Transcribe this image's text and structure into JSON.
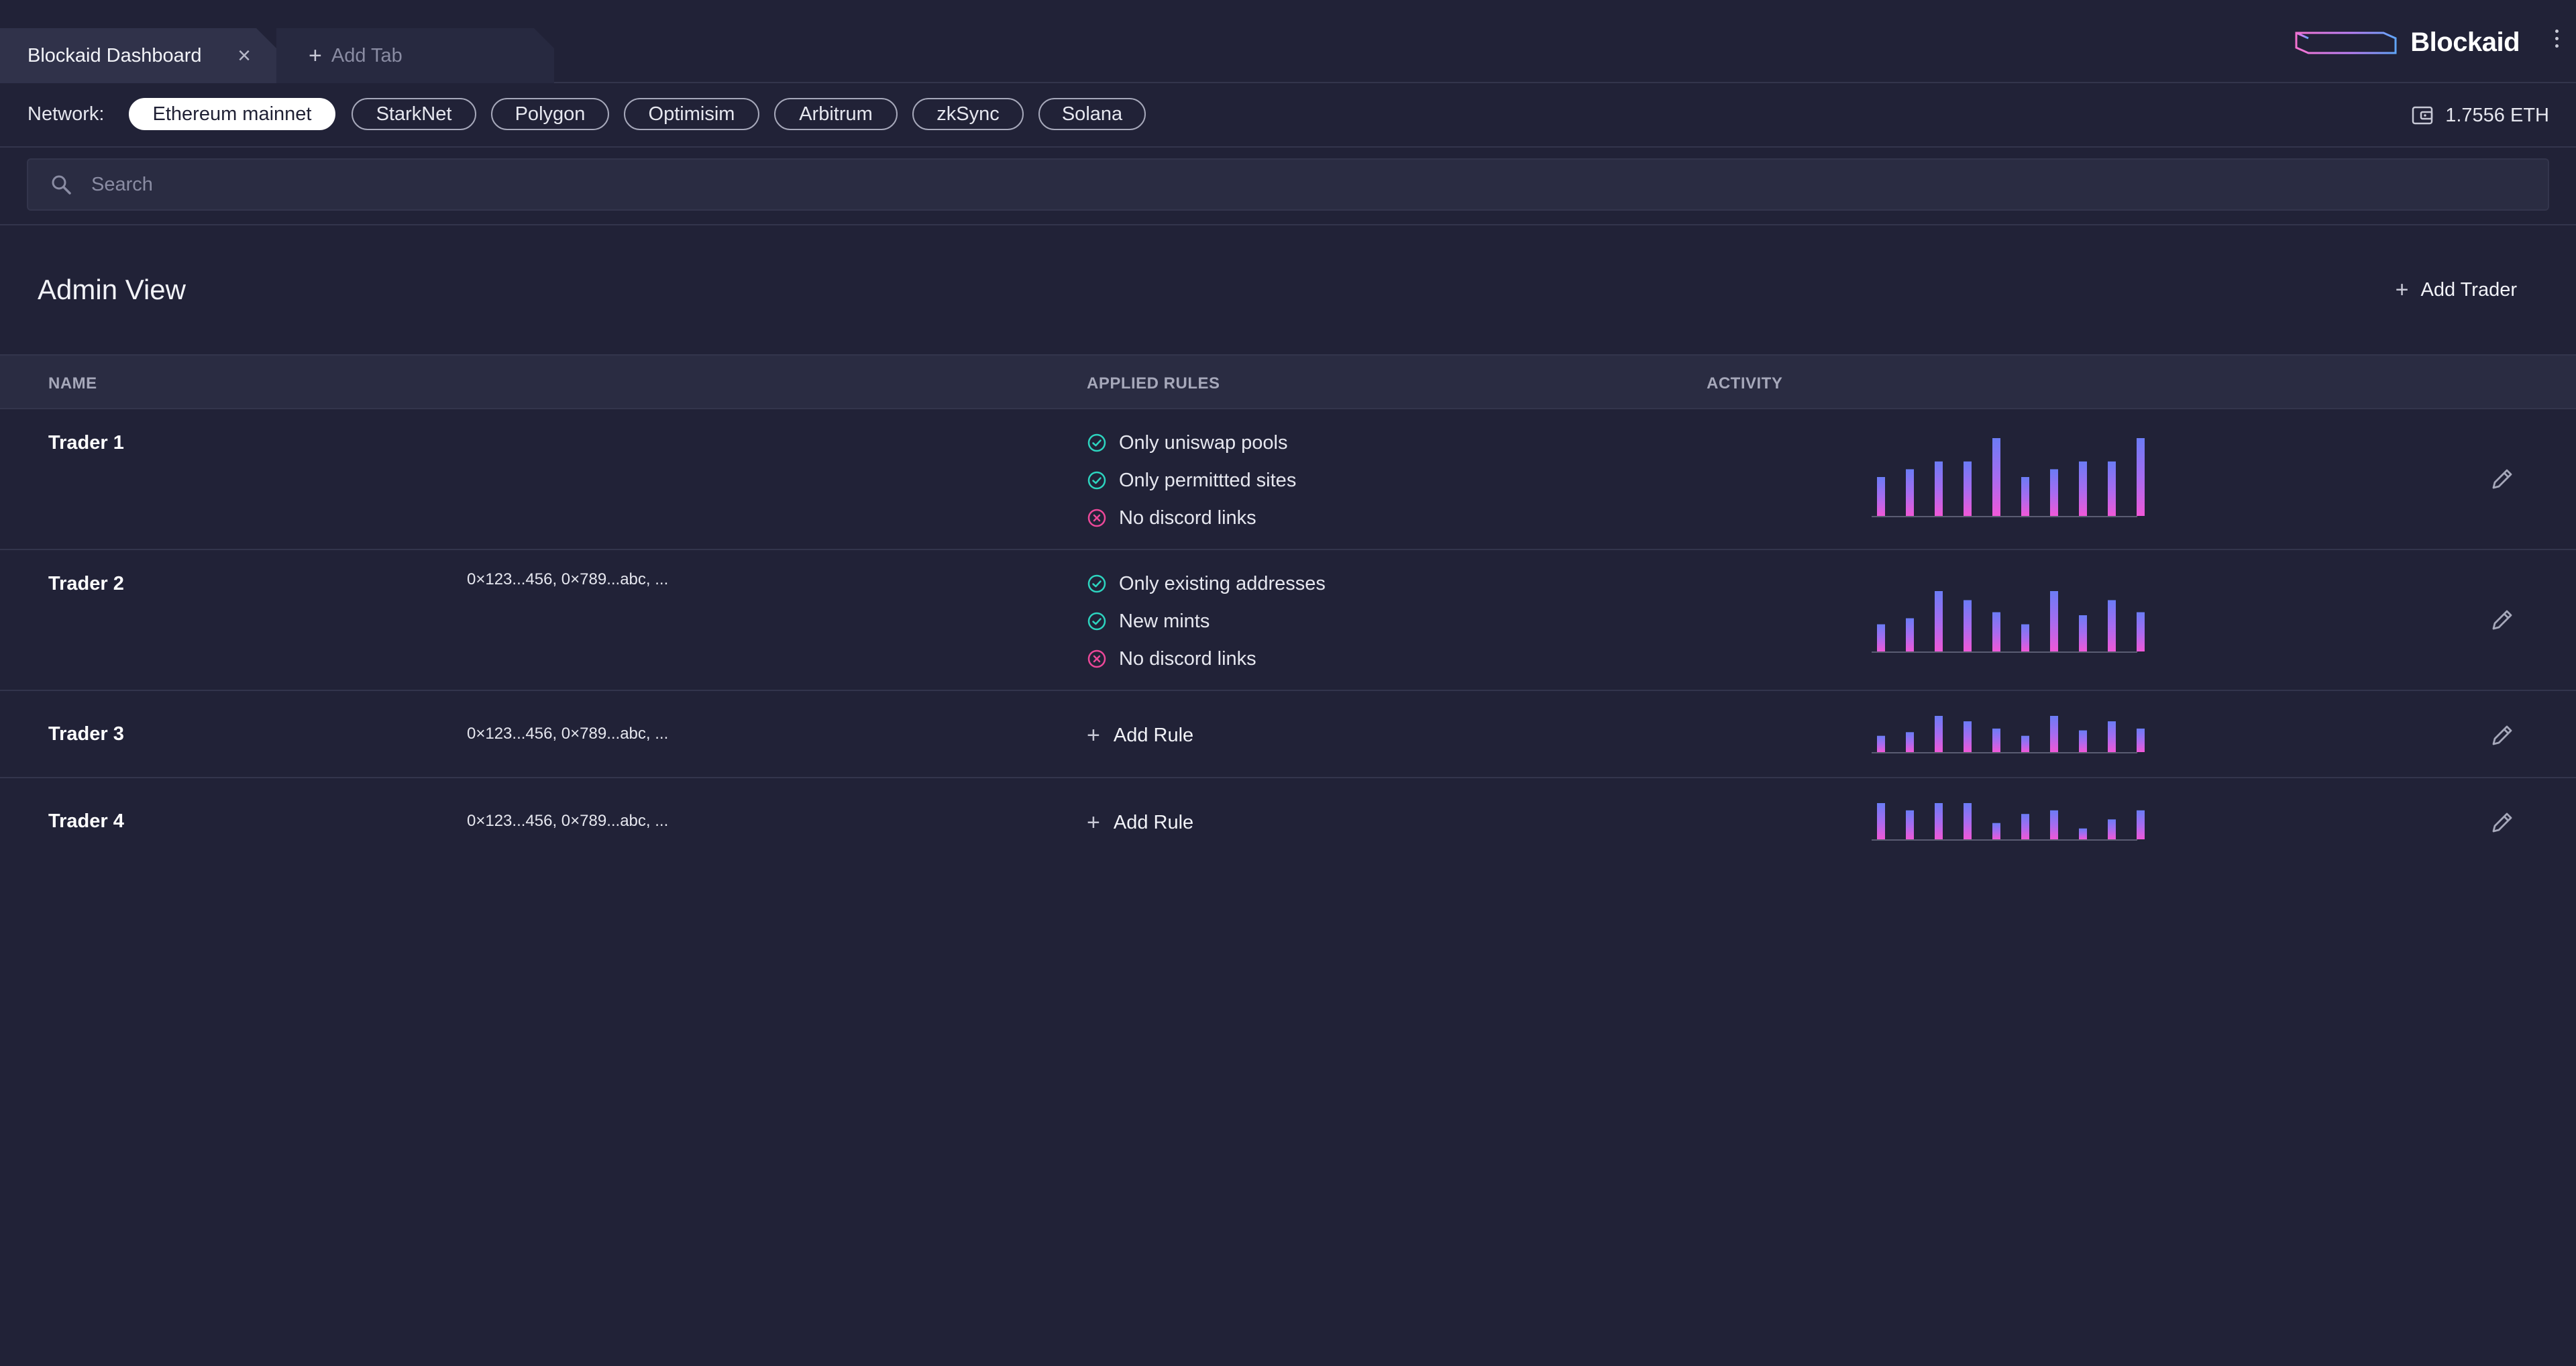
{
  "tabs": {
    "active_label": "Blockaid Dashboard",
    "add_label": "Add Tab"
  },
  "brand": {
    "name": "Blockaid"
  },
  "network": {
    "label": "Network:",
    "options": [
      "Ethereum mainnet",
      "StarkNet",
      "Polygon",
      "Optimisim",
      "Arbitrum",
      "zkSync",
      "Solana"
    ],
    "selected": "Ethereum mainnet"
  },
  "wallet": {
    "balance": "1.7556 ETH"
  },
  "search": {
    "placeholder": "Search"
  },
  "page": {
    "title": "Admin View",
    "add_trader_label": "Add Trader"
  },
  "table": {
    "headers": {
      "name": "NAME",
      "rules": "APPLIED RULES",
      "activity": "ACTIVITY"
    },
    "add_rule_label": "Add Rule",
    "rows": [
      {
        "name": "Trader 1",
        "addresses": "",
        "rules": [
          {
            "label": "Only uniswap pools",
            "status": "allowed"
          },
          {
            "label": "Only permittted sites",
            "status": "allowed"
          },
          {
            "label": "No discord links",
            "status": "blocked"
          }
        ],
        "activity": [
          0.5,
          0.6,
          0.7,
          0.7,
          1.0,
          0.5,
          0.6,
          0.7,
          0.7,
          1.0
        ]
      },
      {
        "name": "Trader 2",
        "addresses": "0×123...456, 0×789...abc, ...",
        "rules": [
          {
            "label": "Only existing addresses",
            "status": "allowed"
          },
          {
            "label": "New mints",
            "status": "allowed"
          },
          {
            "label": "No discord links",
            "status": "blocked"
          }
        ],
        "activity": [
          0.45,
          0.55,
          1.0,
          0.85,
          0.65,
          0.45,
          1.0,
          0.6,
          0.85,
          0.65
        ]
      },
      {
        "name": "Trader 3",
        "addresses": "0×123...456, 0×789...abc, ...",
        "rules": [],
        "activity": [
          0.45,
          0.55,
          1.0,
          0.85,
          0.65,
          0.45,
          1.0,
          0.6,
          0.85,
          0.65
        ]
      },
      {
        "name": "Trader 4",
        "addresses": "0×123...456, 0×789...abc, ...",
        "rules": [],
        "activity": [
          1.0,
          0.8,
          1.0,
          1.0,
          0.45,
          0.7,
          0.8,
          0.3,
          0.55,
          0.8
        ]
      }
    ]
  },
  "colors": {
    "background": "#212237",
    "allowed": "#2dd4bf",
    "blocked": "#ec4899",
    "bar_top": "#6b7cf5",
    "bar_bottom": "#f058d8"
  }
}
